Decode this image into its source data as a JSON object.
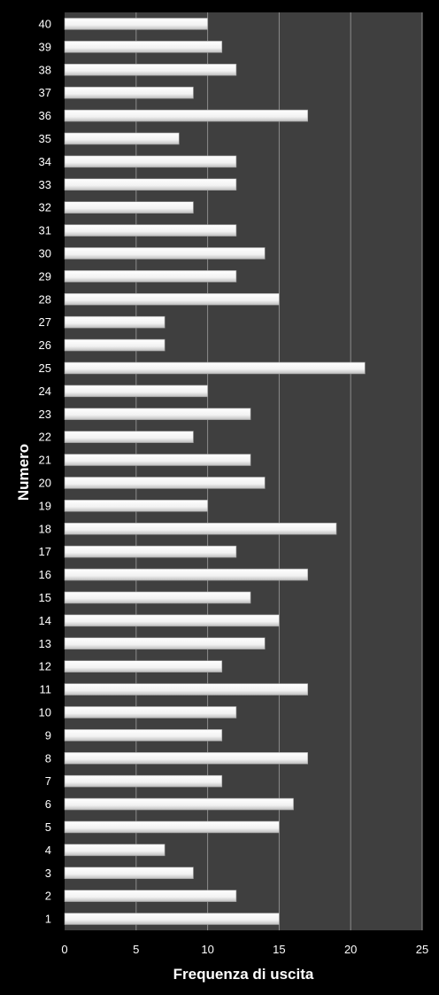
{
  "chart_data": {
    "type": "bar",
    "orientation": "horizontal",
    "xlabel": "Frequenza di uscita",
    "ylabel": "Numero",
    "xlim": [
      0,
      25
    ],
    "x_ticks": [
      "0",
      "5",
      "10",
      "15",
      "20",
      "25"
    ],
    "grid": true,
    "categories": [
      "1",
      "2",
      "3",
      "4",
      "5",
      "6",
      "7",
      "8",
      "9",
      "10",
      "11",
      "12",
      "13",
      "14",
      "15",
      "16",
      "17",
      "18",
      "19",
      "20",
      "21",
      "22",
      "23",
      "24",
      "25",
      "26",
      "27",
      "28",
      "29",
      "30",
      "31",
      "32",
      "33",
      "34",
      "35",
      "36",
      "37",
      "38",
      "39",
      "40"
    ],
    "values": [
      15,
      12,
      9,
      7,
      15,
      16,
      11,
      17,
      11,
      12,
      17,
      11,
      14,
      15,
      13,
      17,
      12,
      19,
      10,
      14,
      13,
      9,
      13,
      10,
      21,
      7,
      7,
      15,
      12,
      14,
      12,
      9,
      12,
      12,
      8,
      17,
      9,
      12,
      11,
      10
    ],
    "colors": {
      "background": "#000000",
      "plot_area": "#3f3f3f",
      "gridline": "#8c8c8c",
      "bar": "#f4f4f4",
      "text": "#ffffff"
    }
  }
}
